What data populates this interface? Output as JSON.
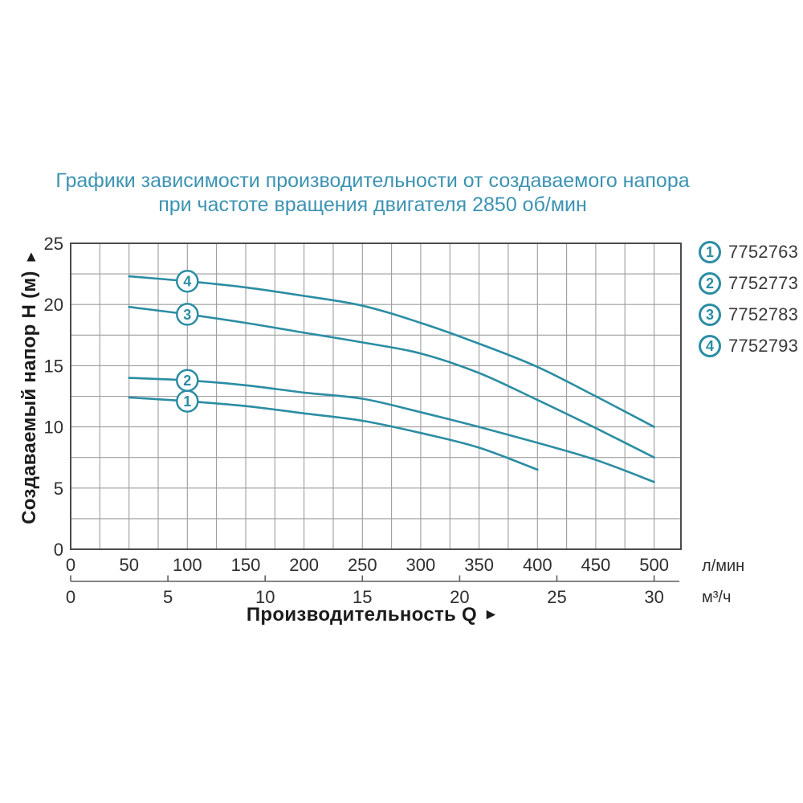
{
  "title": {
    "line1": "Графики зависимости производительности от создаваемого напора",
    "line2": "при частоте вращения двигателя 2850 об/мин",
    "color": "#3c93b2"
  },
  "axes": {
    "y": {
      "title": "Создаваемый напор H (м)",
      "arrow": "▲"
    },
    "x": {
      "title": "Производительность Q",
      "arrow": "►"
    }
  },
  "chart_data": {
    "type": "line",
    "title": "Графики зависимости производительности от создаваемого напора при частоте вращения двигателя 2850 об/мин",
    "xlabel": "Производительность Q",
    "ylabel": "Создаваемый напор H (м)",
    "x_unit_primary": "л/мин",
    "x_unit_secondary": "м³/ч",
    "xlim": [
      0,
      523
    ],
    "ylim": [
      0,
      25
    ],
    "x_ticks_primary": [
      0,
      50,
      100,
      150,
      200,
      250,
      300,
      350,
      400,
      450,
      500
    ],
    "x_ticks_secondary": [
      0,
      5,
      10,
      15,
      20,
      25,
      30
    ],
    "y_ticks": [
      25,
      20,
      15,
      10,
      5,
      0
    ],
    "x_grid_step": 25,
    "y_grid_step": 2.5,
    "grid": true,
    "legend_position": "right",
    "marker_at_x": 100,
    "series": [
      {
        "name": "1",
        "part_number": "7752763",
        "points": [
          [
            50,
            12.4
          ],
          [
            100,
            12.1
          ],
          [
            150,
            11.7
          ],
          [
            200,
            11.1
          ],
          [
            250,
            10.5
          ],
          [
            300,
            9.5
          ],
          [
            350,
            8.3
          ],
          [
            400,
            6.5
          ]
        ]
      },
      {
        "name": "2",
        "part_number": "7752773",
        "points": [
          [
            50,
            14.0
          ],
          [
            100,
            13.8
          ],
          [
            150,
            13.4
          ],
          [
            200,
            12.8
          ],
          [
            250,
            12.3
          ],
          [
            300,
            11.2
          ],
          [
            350,
            10.0
          ],
          [
            400,
            8.7
          ],
          [
            450,
            7.3
          ],
          [
            500,
            5.5
          ]
        ]
      },
      {
        "name": "3",
        "part_number": "7752783",
        "points": [
          [
            50,
            19.8
          ],
          [
            100,
            19.2
          ],
          [
            150,
            18.5
          ],
          [
            200,
            17.7
          ],
          [
            250,
            16.9
          ],
          [
            300,
            16.0
          ],
          [
            350,
            14.4
          ],
          [
            400,
            12.2
          ],
          [
            450,
            9.9
          ],
          [
            500,
            7.5
          ]
        ]
      },
      {
        "name": "4",
        "part_number": "7752793",
        "points": [
          [
            50,
            22.3
          ],
          [
            100,
            21.9
          ],
          [
            150,
            21.4
          ],
          [
            200,
            20.7
          ],
          [
            250,
            19.9
          ],
          [
            300,
            18.5
          ],
          [
            350,
            16.8
          ],
          [
            400,
            14.9
          ],
          [
            450,
            12.5
          ],
          [
            500,
            10.0
          ]
        ]
      }
    ],
    "colors": {
      "curve": "#2b8da3",
      "grid": "#9d9d9d",
      "border": "#4b4b4b",
      "axis2": "#5f5f5f",
      "tick_text": "#2e2e2e",
      "title": "#3c93b2"
    }
  }
}
